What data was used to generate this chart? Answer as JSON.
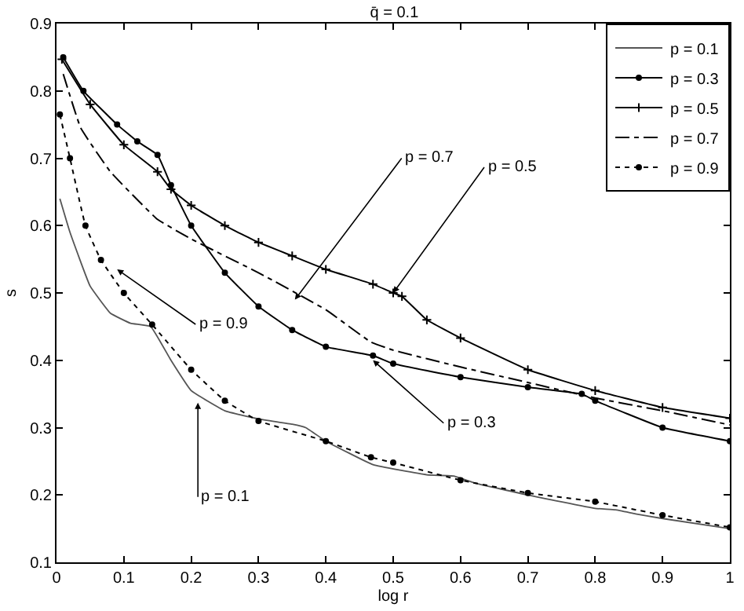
{
  "chart_data": {
    "type": "line",
    "title": "q̄ = 0.1",
    "xlabel": "log r",
    "ylabel": "s",
    "xlim": [
      0,
      1
    ],
    "ylim": [
      0.1,
      0.9
    ],
    "xticks": [
      0,
      0.1,
      0.2,
      0.3,
      0.4,
      0.5,
      0.6,
      0.7,
      0.8,
      0.9,
      1
    ],
    "yticks": [
      0.1,
      0.2,
      0.3,
      0.4,
      0.5,
      0.6,
      0.7,
      0.8,
      0.9
    ],
    "legend": "top right",
    "series": [
      {
        "name": "p = 0.1",
        "color": "#555555",
        "marker": "none",
        "line_style": "solid",
        "x": [
          0.005,
          0.02,
          0.05,
          0.08,
          0.11,
          0.14,
          0.17,
          0.2,
          0.25,
          0.3,
          0.35,
          0.37,
          0.4,
          0.47,
          0.55,
          0.59,
          0.62,
          0.7,
          0.8,
          0.83,
          0.86,
          0.9,
          1
        ],
        "values": [
          0.64,
          0.59,
          0.51,
          0.47,
          0.455,
          0.45,
          0.4,
          0.355,
          0.325,
          0.313,
          0.305,
          0.3,
          0.28,
          0.245,
          0.23,
          0.228,
          0.218,
          0.2,
          0.18,
          0.178,
          0.172,
          0.165,
          0.15
        ]
      },
      {
        "name": "p = 0.3",
        "color": "#000000",
        "marker": "circle",
        "line_style": "solid",
        "x": [
          0.01,
          0.04,
          0.09,
          0.12,
          0.15,
          0.17,
          0.2,
          0.25,
          0.3,
          0.35,
          0.4,
          0.47,
          0.5,
          0.6,
          0.7,
          0.78,
          0.8,
          0.9,
          1
        ],
        "values": [
          0.85,
          0.8,
          0.75,
          0.725,
          0.705,
          0.66,
          0.6,
          0.53,
          0.48,
          0.445,
          0.42,
          0.407,
          0.395,
          0.375,
          0.36,
          0.35,
          0.34,
          0.3,
          0.28
        ]
      },
      {
        "name": "p = 0.5",
        "color": "#000000",
        "marker": "cross",
        "line_style": "solid",
        "x": [
          0.008,
          0.05,
          0.1,
          0.15,
          0.17,
          0.2,
          0.25,
          0.3,
          0.35,
          0.4,
          0.47,
          0.5,
          0.513,
          0.55,
          0.6,
          0.7,
          0.8,
          0.9,
          1
        ],
        "values": [
          0.847,
          0.78,
          0.72,
          0.68,
          0.654,
          0.63,
          0.6,
          0.575,
          0.555,
          0.535,
          0.513,
          0.5,
          0.495,
          0.46,
          0.433,
          0.386,
          0.355,
          0.33,
          0.314
        ]
      },
      {
        "name": "p = 0.7",
        "color": "#000000",
        "marker": "none",
        "line_style": "dashdot",
        "x": [
          0.01,
          0.036,
          0.08,
          0.149,
          0.2,
          0.3,
          0.4,
          0.467,
          0.5,
          0.6,
          0.7,
          0.8,
          0.9,
          1
        ],
        "values": [
          0.825,
          0.745,
          0.68,
          0.61,
          0.58,
          0.53,
          0.475,
          0.427,
          0.415,
          0.39,
          0.367,
          0.344,
          0.325,
          0.304
        ]
      },
      {
        "name": "p = 0.9",
        "color": "#000000",
        "marker": "circle",
        "line_style": "dotted",
        "x": [
          0.005,
          0.02,
          0.043,
          0.066,
          0.1,
          0.142,
          0.2,
          0.25,
          0.3,
          0.4,
          0.467,
          0.5,
          0.6,
          0.7,
          0.8,
          0.9,
          1
        ],
        "values": [
          0.765,
          0.7,
          0.6,
          0.549,
          0.5,
          0.453,
          0.386,
          0.34,
          0.31,
          0.28,
          0.256,
          0.248,
          0.222,
          0.203,
          0.19,
          0.17,
          0.152
        ]
      }
    ],
    "annotations": [
      {
        "text": "p = 0.7",
        "x": 0.354,
        "y": 0.49
      },
      {
        "text": "p = 0.5",
        "x": 0.5,
        "y": 0.5
      },
      {
        "text": "p = 0.9",
        "x": 0.09,
        "y": 0.535
      },
      {
        "text": "p = 0.3",
        "x": 0.47,
        "y": 0.4
      },
      {
        "text": "p = 0.1",
        "x": 0.21,
        "y": 0.337
      }
    ]
  }
}
